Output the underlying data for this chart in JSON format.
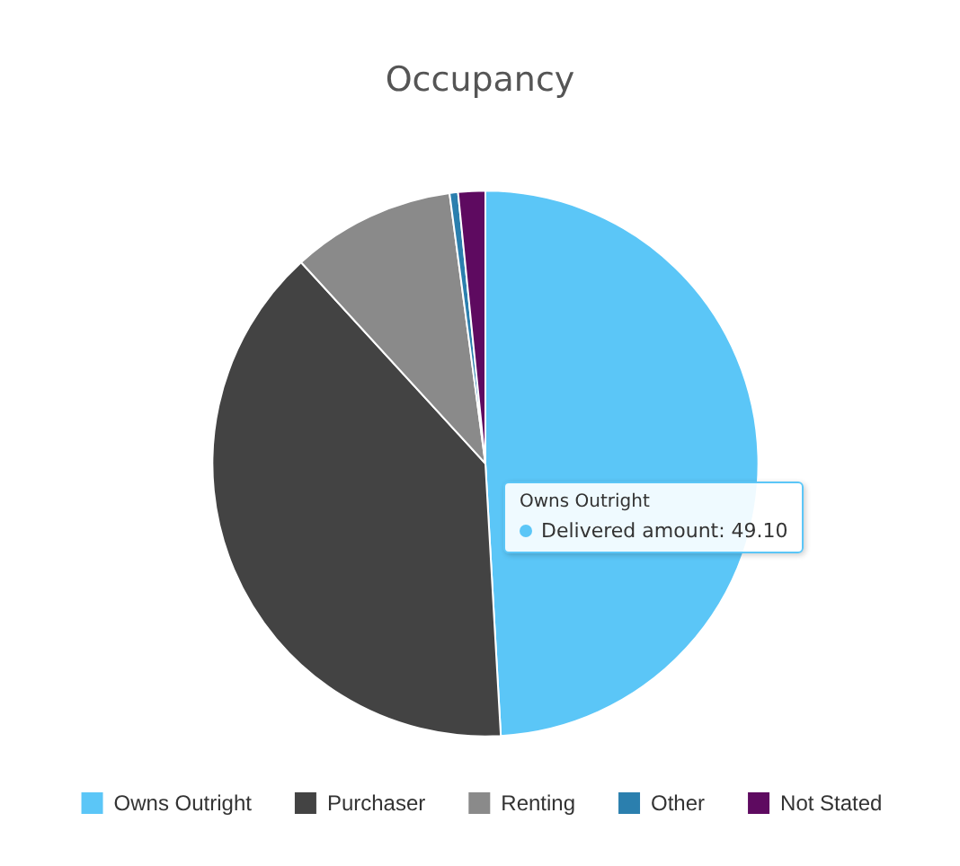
{
  "chart_data": {
    "type": "pie",
    "title": "Occupancy",
    "categories": [
      "Owns Outright",
      "Purchaser",
      "Renting",
      "Other",
      "Not Stated"
    ],
    "values": [
      49.1,
      39.1,
      9.7,
      0.5,
      1.6
    ],
    "colors": [
      "#5bc6f7",
      "#434343",
      "#8a8a8a",
      "#2b7fae",
      "#5e0a60"
    ],
    "legend": "bottom",
    "annotations": [
      "Owns Outright",
      "Delivered amount: 49.10"
    ]
  }
}
